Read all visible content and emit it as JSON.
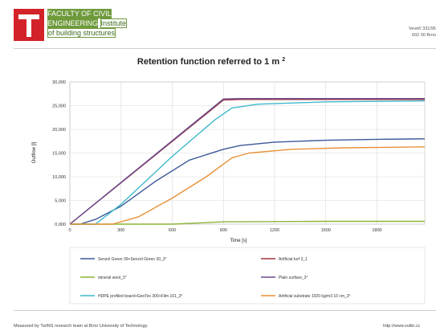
{
  "header": {
    "faculty_line1": "FACULTY OF CIVIL",
    "faculty_line2": "ENGINEERING",
    "institute_word": "Institute",
    "institute_line": "of building structures",
    "address_line1": "Veveří 331/95",
    "address_line2": "602 00 Brno"
  },
  "footer": {
    "left_text": "Measured by TwINS research team at Brno University of Technology.",
    "right_text": "http://www.vutbr.cz"
  },
  "chart_data": {
    "type": "line",
    "title": "Retention function referred to 1 m",
    "title_superscript": "2",
    "xlabel": "Time [s]",
    "ylabel": "Outflow [l]",
    "xlim": [
      0,
      2080
    ],
    "ylim": [
      0,
      30000
    ],
    "x_ticks": [
      "0",
      "300",
      "600",
      "900",
      "1200",
      "1500",
      "1800"
    ],
    "y_ticks": [
      "0,000",
      "5,000",
      "10,000",
      "15,000",
      "20,000",
      "25,000",
      "30,000"
    ],
    "grid": true,
    "legend_position": "bottom",
    "series": [
      {
        "name": "Senzol Green 39+Senzol Green 30_3°",
        "color": "#3b5998",
        "points": [
          [
            0,
            0
          ],
          [
            60,
            0
          ],
          [
            150,
            1000
          ],
          [
            300,
            3800
          ],
          [
            500,
            9000
          ],
          [
            700,
            13500
          ],
          [
            900,
            15800
          ],
          [
            1000,
            16600
          ],
          [
            1200,
            17300
          ],
          [
            1500,
            17700
          ],
          [
            1800,
            17900
          ],
          [
            2080,
            18000
          ]
        ]
      },
      {
        "name": "Artificial turf 3_1",
        "color": "#9e3340",
        "points": [
          [
            0,
            0
          ],
          [
            900,
            26200
          ],
          [
            1000,
            26300
          ],
          [
            1500,
            26300
          ],
          [
            2080,
            26300
          ]
        ]
      },
      {
        "name": "mineral wool_3°",
        "color": "#8db33a",
        "points": [
          [
            0,
            0
          ],
          [
            300,
            0
          ],
          [
            600,
            0
          ],
          [
            900,
            500
          ],
          [
            1200,
            550
          ],
          [
            1500,
            600
          ],
          [
            1800,
            600
          ],
          [
            2080,
            600
          ]
        ]
      },
      {
        "name": "Plain surface_3°",
        "color": "#6b4a8e",
        "points": [
          [
            0,
            0
          ],
          [
            900,
            26400
          ],
          [
            1000,
            26500
          ],
          [
            1500,
            26500
          ],
          [
            2080,
            26500
          ]
        ]
      },
      {
        "name": "HDPE profiled board+GeoTex 300+Film 101_3°",
        "color": "#3fb8c9",
        "points": [
          [
            0,
            0
          ],
          [
            150,
            0
          ],
          [
            300,
            4200
          ],
          [
            600,
            14300
          ],
          [
            850,
            22000
          ],
          [
            950,
            24500
          ],
          [
            1100,
            25300
          ],
          [
            1500,
            25800
          ],
          [
            2080,
            26000
          ]
        ]
      },
      {
        "name": "Artificial substrate 1020 kg/m3 10 cm_3°",
        "color": "#e8913a",
        "points": [
          [
            0,
            0
          ],
          [
            250,
            0
          ],
          [
            400,
            1500
          ],
          [
            600,
            5500
          ],
          [
            800,
            10000
          ],
          [
            950,
            14000
          ],
          [
            1050,
            15000
          ],
          [
            1300,
            15800
          ],
          [
            1600,
            16100
          ],
          [
            2080,
            16300
          ]
        ]
      }
    ]
  }
}
